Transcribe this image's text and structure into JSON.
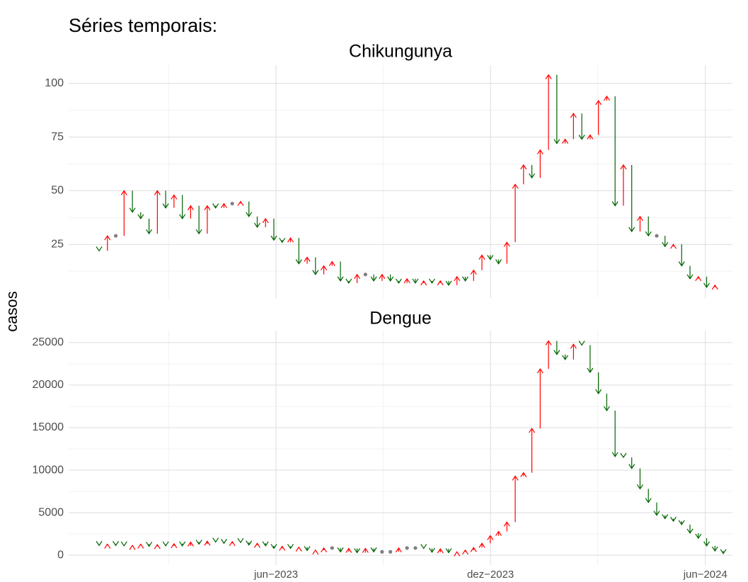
{
  "title": "Séries temporais:",
  "ylabel": "casos",
  "up_color": "red",
  "down_color": "darkgreen",
  "flat_color": "grey",
  "grid": true,
  "chart_data": [
    {
      "type": "arrow",
      "title": "Chikungunya",
      "x": [
        1,
        2,
        3,
        4,
        5,
        6,
        7,
        8,
        9,
        10,
        11,
        12,
        13,
        14,
        15,
        16,
        17,
        18,
        19,
        20,
        21,
        22,
        23,
        24,
        25,
        26,
        27,
        28,
        29,
        30,
        31,
        32,
        33,
        34,
        35,
        36,
        37,
        38,
        39,
        40,
        41,
        42,
        43,
        44,
        45,
        46,
        47,
        48,
        49,
        50,
        51,
        52,
        53,
        54,
        55,
        56,
        57,
        58,
        59,
        60,
        61,
        62,
        63,
        64,
        65,
        66,
        67,
        68,
        69,
        70,
        71,
        72,
        73,
        74,
        75
      ],
      "values": [
        22,
        29,
        29,
        50,
        40,
        37,
        30,
        50,
        42,
        48,
        37,
        43,
        30,
        43,
        42,
        44,
        44,
        45,
        38,
        33,
        37,
        27,
        26,
        28,
        16,
        19,
        11,
        15,
        17,
        8,
        7,
        11,
        11,
        8,
        11,
        8,
        7,
        9,
        7,
        8,
        7,
        8,
        6,
        10,
        8,
        13,
        20,
        18,
        16,
        26,
        53,
        62,
        56,
        69,
        104,
        72,
        74,
        86,
        74,
        76,
        92,
        94,
        43,
        62,
        31,
        38,
        29,
        29,
        24,
        25,
        15,
        9,
        10,
        5,
        6
      ],
      "xlim": [
        -2.66,
        77.1
      ],
      "xticks": [
        22.26,
        48.03,
        73.85
      ],
      "ylim": [
        0,
        108.5
      ],
      "yticks": [
        25,
        50,
        75,
        100
      ]
    },
    {
      "type": "arrow",
      "title": "Dengue",
      "x": [
        1,
        2,
        3,
        4,
        5,
        6,
        7,
        8,
        9,
        10,
        11,
        12,
        13,
        14,
        15,
        16,
        17,
        18,
        19,
        20,
        21,
        22,
        23,
        24,
        25,
        26,
        27,
        28,
        29,
        30,
        31,
        32,
        33,
        34,
        35,
        36,
        37,
        38,
        39,
        40,
        41,
        42,
        43,
        44,
        45,
        46,
        47,
        48,
        49,
        50,
        51,
        52,
        53,
        54,
        55,
        56,
        57,
        58,
        59,
        60,
        61,
        62,
        63,
        64,
        65,
        66,
        67,
        68,
        69,
        70,
        71,
        72,
        73,
        74,
        75,
        76
      ],
      "values": [
        1150,
        1300,
        1150,
        1100,
        1150,
        1300,
        1050,
        1250,
        1100,
        1350,
        1100,
        1550,
        1300,
        1650,
        1550,
        1400,
        1600,
        1500,
        1200,
        1400,
        1100,
        800,
        1050,
        800,
        950,
        550,
        600,
        850,
        850,
        400,
        800,
        300,
        800,
        400,
        400,
        400,
        850,
        850,
        850,
        800,
        350,
        750,
        300,
        400,
        600,
        900,
        1400,
        2300,
        2800,
        3900,
        9300,
        9700,
        14900,
        21900,
        25200,
        23600,
        23000,
        24800,
        24700,
        21500,
        19000,
        17000,
        11600,
        11500,
        10200,
        7800,
        6200,
        4700,
        4300,
        4000,
        3600,
        2600,
        2000,
        1100,
        500,
        200
      ],
      "xlim": [
        -2.66,
        77.1
      ],
      "xticks": [
        {
          "value": 22.26,
          "label": "jun−2023"
        },
        {
          "value": 48.03,
          "label": "dez−2023"
        },
        {
          "value": 73.85,
          "label": "jun−2024"
        }
      ],
      "ylim": [
        -1150,
        26400
      ],
      "yticks": [
        0,
        5000,
        10000,
        15000,
        20000,
        25000
      ]
    }
  ]
}
